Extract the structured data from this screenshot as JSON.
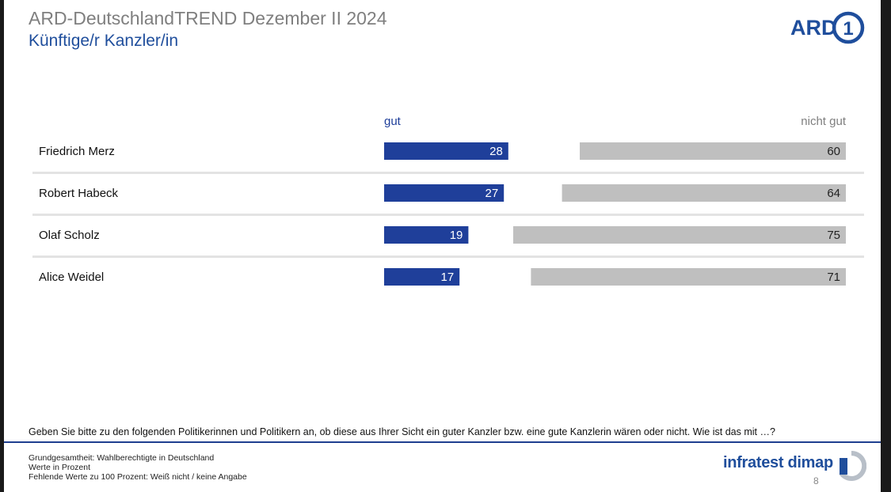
{
  "header": {
    "title": "ARD-DeutschlandTREND Dezember II 2024",
    "subtitle": "Künftige/r Kanzler/in",
    "logo_text": "ARD",
    "logo_number": "1"
  },
  "chart_data": {
    "type": "bar",
    "orientation": "horizontal",
    "layout": "diverging-split",
    "categories": [
      "Friedrich Merz",
      "Robert Habeck",
      "Olaf Scholz",
      "Alice Weidel"
    ],
    "series": [
      {
        "name": "gut",
        "values": [
          28,
          27,
          19,
          17
        ],
        "color": "#1f3f9a",
        "label_color": "#ffffff"
      },
      {
        "name": "nicht gut",
        "values": [
          60,
          64,
          75,
          71
        ],
        "color": "#bfbfbf",
        "label_color": "#222222"
      }
    ],
    "value_unit": "%",
    "grid": false
  },
  "question": "Geben Sie bitte zu den folgenden Politikerinnen und Politikern an, ob diese aus Ihrer Sicht ein guter Kanzler bzw. eine gute Kanzlerin wären oder nicht. Wie ist das mit …?",
  "footer": {
    "notes": [
      "Grundgesamtheit: Wahlberechtigte in Deutschland",
      "Werte in Prozent",
      "Fehlende Werte zu 100 Prozent: Weiß nicht / keine Angabe"
    ],
    "brand": "infratest dimap",
    "page_number": "8"
  },
  "colors": {
    "brand_blue": "#1f4e9c",
    "bar_blue": "#1f3f9a",
    "bar_gray": "#bfbfbf",
    "title_gray": "#7f7f7f"
  }
}
